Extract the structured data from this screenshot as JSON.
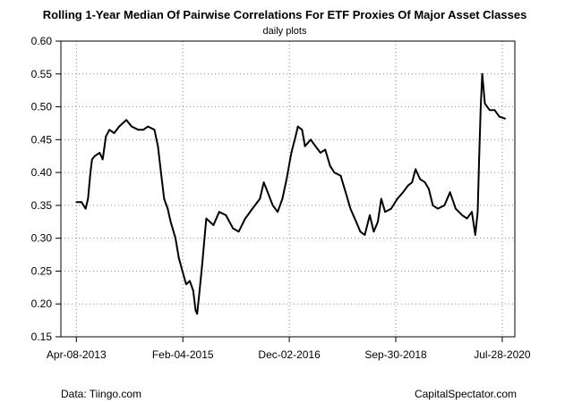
{
  "chart_data": {
    "type": "line",
    "title": "Rolling 1-Year Median Of Pairwise Correlations For ETF Proxies Of Major Asset Classes",
    "subtitle": "daily plots",
    "xlabel": "",
    "ylabel": "",
    "x_ticks": [
      "Apr-08-2013",
      "Feb-04-2015",
      "Dec-02-2016",
      "Sep-30-2018",
      "Jul-28-2020"
    ],
    "y_ticks": [
      "0.60",
      "0.55",
      "0.50",
      "0.45",
      "0.40",
      "0.35",
      "0.30",
      "0.25",
      "0.20",
      "0.15"
    ],
    "xlim": [
      "2013-01-01",
      "2020-10-15"
    ],
    "ylim": [
      0.15,
      0.6
    ],
    "grid": true,
    "legend": "none",
    "series": [
      {
        "color": "#000000",
        "points": [
          [
            "2013-04-08",
            0.355
          ],
          [
            "2013-05-10",
            0.355
          ],
          [
            "2013-06-05",
            0.345
          ],
          [
            "2013-06-20",
            0.36
          ],
          [
            "2013-07-05",
            0.4
          ],
          [
            "2013-07-15",
            0.42
          ],
          [
            "2013-08-01",
            0.425
          ],
          [
            "2013-09-01",
            0.43
          ],
          [
            "2013-09-20",
            0.42
          ],
          [
            "2013-10-10",
            0.455
          ],
          [
            "2013-11-01",
            0.465
          ],
          [
            "2013-12-01",
            0.46
          ],
          [
            "2014-01-01",
            0.47
          ],
          [
            "2014-02-15",
            0.48
          ],
          [
            "2014-03-20",
            0.47
          ],
          [
            "2014-05-01",
            0.465
          ],
          [
            "2014-06-01",
            0.465
          ],
          [
            "2014-07-01",
            0.47
          ],
          [
            "2014-08-10",
            0.465
          ],
          [
            "2014-09-01",
            0.44
          ],
          [
            "2014-09-20",
            0.4
          ],
          [
            "2014-10-10",
            0.36
          ],
          [
            "2014-11-01",
            0.345
          ],
          [
            "2014-11-20",
            0.325
          ],
          [
            "2014-12-20",
            0.3
          ],
          [
            "2015-01-10",
            0.27
          ],
          [
            "2015-02-01",
            0.25
          ],
          [
            "2015-02-25",
            0.23
          ],
          [
            "2015-03-20",
            0.235
          ],
          [
            "2015-04-10",
            0.22
          ],
          [
            "2015-04-25",
            0.19
          ],
          [
            "2015-05-05",
            0.185
          ],
          [
            "2015-05-20",
            0.22
          ],
          [
            "2015-06-05",
            0.26
          ],
          [
            "2015-06-20",
            0.3
          ],
          [
            "2015-07-01",
            0.33
          ],
          [
            "2015-08-15",
            0.32
          ],
          [
            "2015-09-20",
            0.34
          ],
          [
            "2015-11-01",
            0.335
          ],
          [
            "2015-12-15",
            0.315
          ],
          [
            "2016-01-20",
            0.31
          ],
          [
            "2016-03-01",
            0.33
          ],
          [
            "2016-04-15",
            0.345
          ],
          [
            "2016-06-01",
            0.36
          ],
          [
            "2016-06-25",
            0.385
          ],
          [
            "2016-07-20",
            0.37
          ],
          [
            "2016-08-20",
            0.35
          ],
          [
            "2016-09-20",
            0.34
          ],
          [
            "2016-10-20",
            0.36
          ],
          [
            "2016-11-15",
            0.39
          ],
          [
            "2016-12-15",
            0.43
          ],
          [
            "2017-01-10",
            0.455
          ],
          [
            "2017-01-25",
            0.47
          ],
          [
            "2017-02-20",
            0.465
          ],
          [
            "2017-03-10",
            0.44
          ],
          [
            "2017-04-15",
            0.45
          ],
          [
            "2017-05-15",
            0.44
          ],
          [
            "2017-06-15",
            0.43
          ],
          [
            "2017-07-15",
            0.435
          ],
          [
            "2017-08-15",
            0.41
          ],
          [
            "2017-09-10",
            0.4
          ],
          [
            "2017-10-20",
            0.395
          ],
          [
            "2017-11-20",
            0.37
          ],
          [
            "2017-12-20",
            0.345
          ],
          [
            "2018-01-25",
            0.325
          ],
          [
            "2018-02-20",
            0.31
          ],
          [
            "2018-03-20",
            0.305
          ],
          [
            "2018-04-20",
            0.335
          ],
          [
            "2018-05-15",
            0.31
          ],
          [
            "2018-06-10",
            0.325
          ],
          [
            "2018-07-01",
            0.36
          ],
          [
            "2018-07-25",
            0.34
          ],
          [
            "2018-09-01",
            0.345
          ],
          [
            "2018-10-10",
            0.36
          ],
          [
            "2018-11-15",
            0.37
          ],
          [
            "2018-12-15",
            0.38
          ],
          [
            "2019-01-10",
            0.385
          ],
          [
            "2019-02-01",
            0.405
          ],
          [
            "2019-03-01",
            0.39
          ],
          [
            "2019-04-01",
            0.385
          ],
          [
            "2019-04-25",
            0.375
          ],
          [
            "2019-05-20",
            0.35
          ],
          [
            "2019-06-20",
            0.345
          ],
          [
            "2019-08-01",
            0.35
          ],
          [
            "2019-09-05",
            0.37
          ],
          [
            "2019-10-10",
            0.345
          ],
          [
            "2019-11-20",
            0.335
          ],
          [
            "2019-12-20",
            0.33
          ],
          [
            "2020-01-20",
            0.34
          ],
          [
            "2020-02-10",
            0.305
          ],
          [
            "2020-02-25",
            0.34
          ],
          [
            "2020-03-05",
            0.42
          ],
          [
            "2020-03-15",
            0.5
          ],
          [
            "2020-03-25",
            0.55
          ],
          [
            "2020-04-10",
            0.505
          ],
          [
            "2020-05-10",
            0.495
          ],
          [
            "2020-06-10",
            0.495
          ],
          [
            "2020-07-10",
            0.485
          ],
          [
            "2020-08-15",
            0.482
          ]
        ]
      }
    ]
  },
  "footer": {
    "source": "Data: Tiingo.com",
    "site": "CapitalSpectator.com"
  }
}
